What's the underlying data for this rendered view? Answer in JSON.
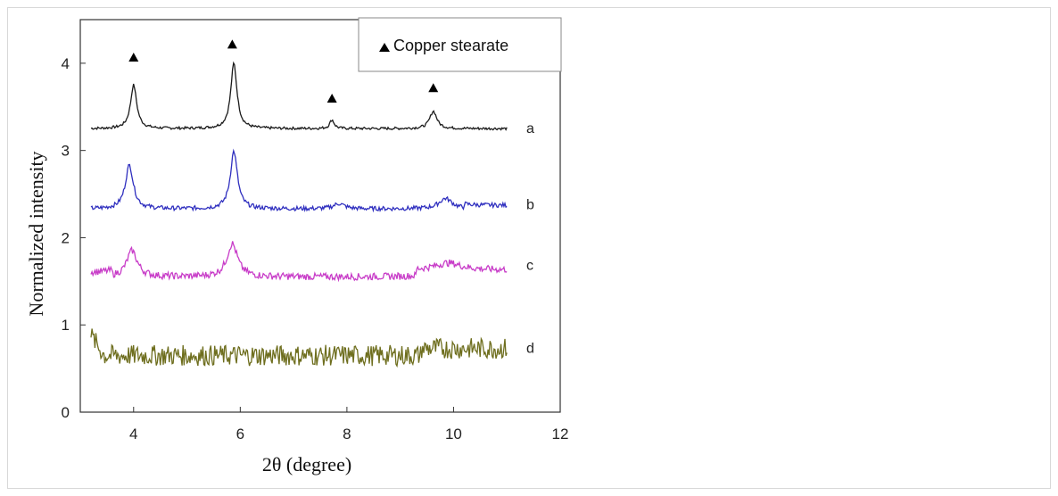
{
  "chart_data": {
    "type": "line",
    "xlabel": "2θ (degree)",
    "ylabel": "Normalized intensity",
    "xlim": [
      3,
      12
    ],
    "ylim": [
      0,
      4.5
    ],
    "xticks": [
      "4",
      "6",
      "8",
      "10",
      "12"
    ],
    "yticks": [
      "0",
      "1",
      "2",
      "3",
      "4"
    ],
    "grid": false,
    "legend": {
      "label": "Copper stearate",
      "marker": "triangle",
      "placement": "top-right"
    },
    "peak_markers": [
      {
        "x": 4.0,
        "y": 4.07
      },
      {
        "x": 5.85,
        "y": 4.22
      },
      {
        "x": 7.72,
        "y": 3.6
      },
      {
        "x": 9.62,
        "y": 3.72
      }
    ],
    "series": [
      {
        "name": "a",
        "color": "#1a1a1a",
        "baseline": 3.25,
        "noise": 0.015,
        "peaks": [
          {
            "x": 4.0,
            "height": 0.5,
            "width": 0.07
          },
          {
            "x": 5.88,
            "height": 0.75,
            "width": 0.07
          },
          {
            "x": 7.72,
            "height": 0.1,
            "width": 0.05
          },
          {
            "x": 9.62,
            "height": 0.2,
            "width": 0.08
          }
        ],
        "x": [
          3.2,
          3.6,
          3.9,
          4.0,
          4.15,
          5.6,
          5.88,
          6.2,
          7.5,
          7.72,
          8.0,
          9.4,
          9.62,
          9.9,
          11.0
        ],
        "y": [
          3.28,
          3.27,
          3.45,
          3.77,
          3.3,
          3.26,
          4.0,
          3.28,
          3.24,
          3.35,
          3.24,
          3.26,
          3.46,
          3.27,
          3.25
        ]
      },
      {
        "name": "b",
        "color": "#2f2fbf",
        "baseline": 2.33,
        "noise": 0.025,
        "peaks": [
          {
            "x": 3.92,
            "height": 0.5,
            "width": 0.09
          },
          {
            "x": 5.88,
            "height": 0.66,
            "width": 0.08
          },
          {
            "x": 7.85,
            "height": 0.06,
            "width": 0.12
          },
          {
            "x": 9.85,
            "height": 0.12,
            "width": 0.15
          }
        ],
        "x": [
          3.2,
          3.6,
          3.92,
          4.2,
          5.6,
          5.88,
          6.2,
          7.5,
          7.85,
          8.2,
          9.5,
          9.85,
          10.2,
          11.0
        ],
        "y": [
          2.35,
          2.38,
          2.85,
          2.35,
          2.3,
          2.98,
          2.3,
          2.28,
          2.38,
          2.29,
          2.34,
          2.46,
          2.36,
          2.4
        ]
      },
      {
        "name": "c",
        "color": "#c83cc8",
        "baseline": 1.55,
        "noise": 0.04,
        "peaks": [
          {
            "x": 3.97,
            "height": 0.3,
            "width": 0.12
          },
          {
            "x": 5.85,
            "height": 0.38,
            "width": 0.12
          },
          {
            "x": 9.9,
            "height": 0.08,
            "width": 0.3
          }
        ],
        "x": [
          3.2,
          3.6,
          3.97,
          4.4,
          5.5,
          5.85,
          6.2,
          7.0,
          8.5,
          9.5,
          9.9,
          11.0
        ],
        "y": [
          1.62,
          1.7,
          1.95,
          1.58,
          1.55,
          1.93,
          1.52,
          1.52,
          1.58,
          1.6,
          1.68,
          1.7
        ]
      },
      {
        "name": "d",
        "color": "#6e6e1e",
        "baseline": 0.65,
        "noise": 0.12,
        "peaks": [],
        "x": [
          3.2,
          3.5,
          4.5,
          5.5,
          6.5,
          7.5,
          8.5,
          9.5,
          10.0,
          10.5,
          11.0
        ],
        "y": [
          0.95,
          0.75,
          0.65,
          0.62,
          0.6,
          0.62,
          0.65,
          0.7,
          0.82,
          0.75,
          0.72
        ]
      }
    ],
    "curve_labels": [
      {
        "text": "a",
        "y": 3.25
      },
      {
        "text": "b",
        "y": 2.38
      },
      {
        "text": "c",
        "y": 1.68
      },
      {
        "text": "d",
        "y": 0.73
      }
    ]
  }
}
